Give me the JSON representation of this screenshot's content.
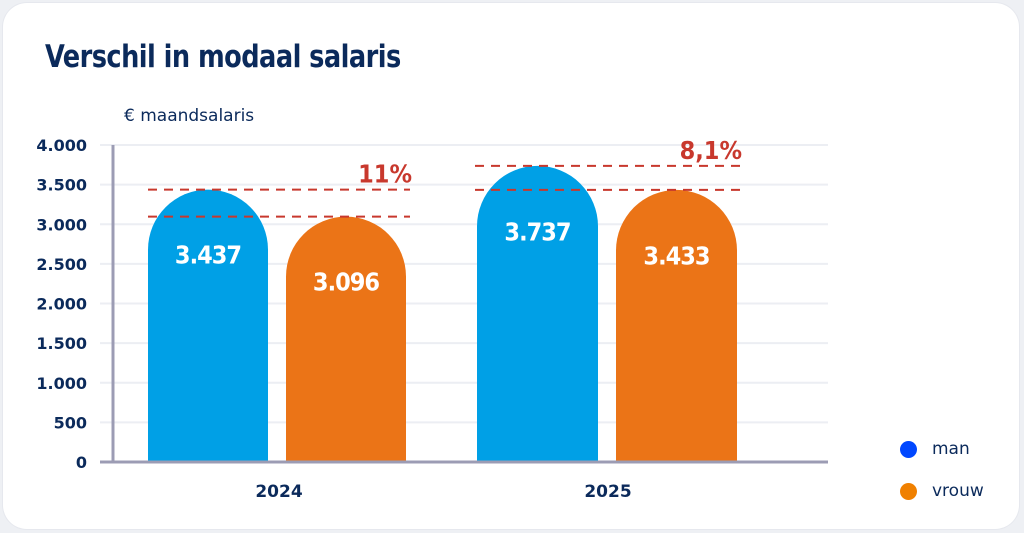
{
  "chart_data": {
    "type": "bar",
    "title": "Verschil in modaal salaris",
    "ylabel": "€ maandsalaris",
    "xlabel": "",
    "categories": [
      "2024",
      "2025"
    ],
    "series": [
      {
        "name": "man",
        "color": "#00a0e6",
        "values": [
          3437,
          3737
        ],
        "labels": [
          "3.437",
          "3.737"
        ]
      },
      {
        "name": "vrouw",
        "color": "#eb7417",
        "values": [
          3096,
          3433
        ],
        "labels": [
          "3.096",
          "3.433"
        ]
      }
    ],
    "ylim": [
      0,
      4000
    ],
    "yticks": [
      0,
      500,
      1000,
      1500,
      2000,
      2500,
      3000,
      3500,
      4000
    ],
    "ytick_labels": [
      "0",
      "500",
      "1.000",
      "1.500",
      "2.000",
      "2.500",
      "3.000",
      "3.500",
      "4.000"
    ],
    "grid": true,
    "legend_position": "bottom-right",
    "annotations": [
      {
        "category": "2024",
        "text": "11%",
        "color": "#c8382d"
      },
      {
        "category": "2025",
        "text": "8,1%",
        "color": "#c8382d"
      }
    ]
  },
  "legend": [
    {
      "label": "man",
      "color": "#0047ff"
    },
    {
      "label": "vrouw",
      "color": "#f08000"
    }
  ]
}
